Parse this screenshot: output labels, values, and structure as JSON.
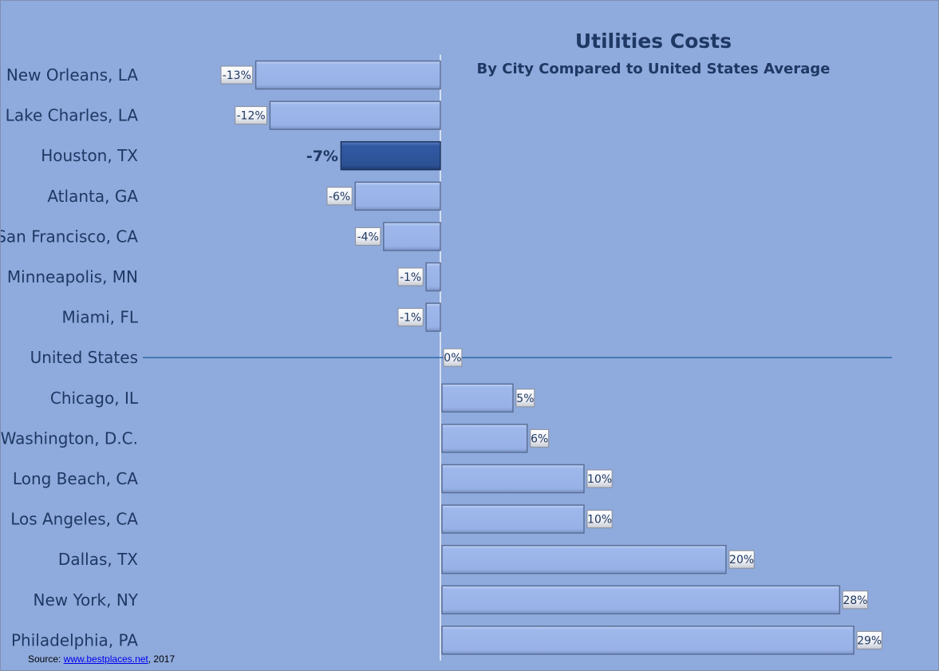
{
  "chart_data": {
    "type": "bar",
    "orientation": "horizontal",
    "title": "Utilities Costs",
    "subtitle": "By City Compared to United States Average",
    "categories": [
      "New Orleans, LA",
      "Lake Charles, LA",
      "Houston, TX",
      "Atlanta, GA",
      "San Francisco, CA",
      "Minneapolis, MN",
      "Miami, FL",
      "United States",
      "Chicago, IL",
      "Washington, D.C.",
      "Long Beach, CA",
      "Los Angeles,  CA",
      "Dallas, TX",
      "New York, NY",
      "Philadelphia, PA"
    ],
    "values": [
      -13,
      -12,
      -7,
      -6,
      -4,
      -1,
      -1,
      0,
      5,
      6,
      10,
      10,
      20,
      28,
      29
    ],
    "value_labels": [
      "-13%",
      "-12%",
      "-7%",
      "-6%",
      "-4%",
      "-1%",
      "-1%",
      "0%",
      "5%",
      "6%",
      "10%",
      "10%",
      "20%",
      "28%",
      "29%"
    ],
    "highlight": "Houston, TX",
    "xlim": [
      -13,
      29
    ],
    "grid": false,
    "legend": "none"
  },
  "colors": {
    "background": "#8faadc",
    "bar": "#9db6ea",
    "bar_highlight": "#2f5597",
    "text": "#1f3864"
  },
  "source": {
    "prefix": "Source: ",
    "link": "www.bestplaces.net",
    "suffix": ", 2017"
  }
}
